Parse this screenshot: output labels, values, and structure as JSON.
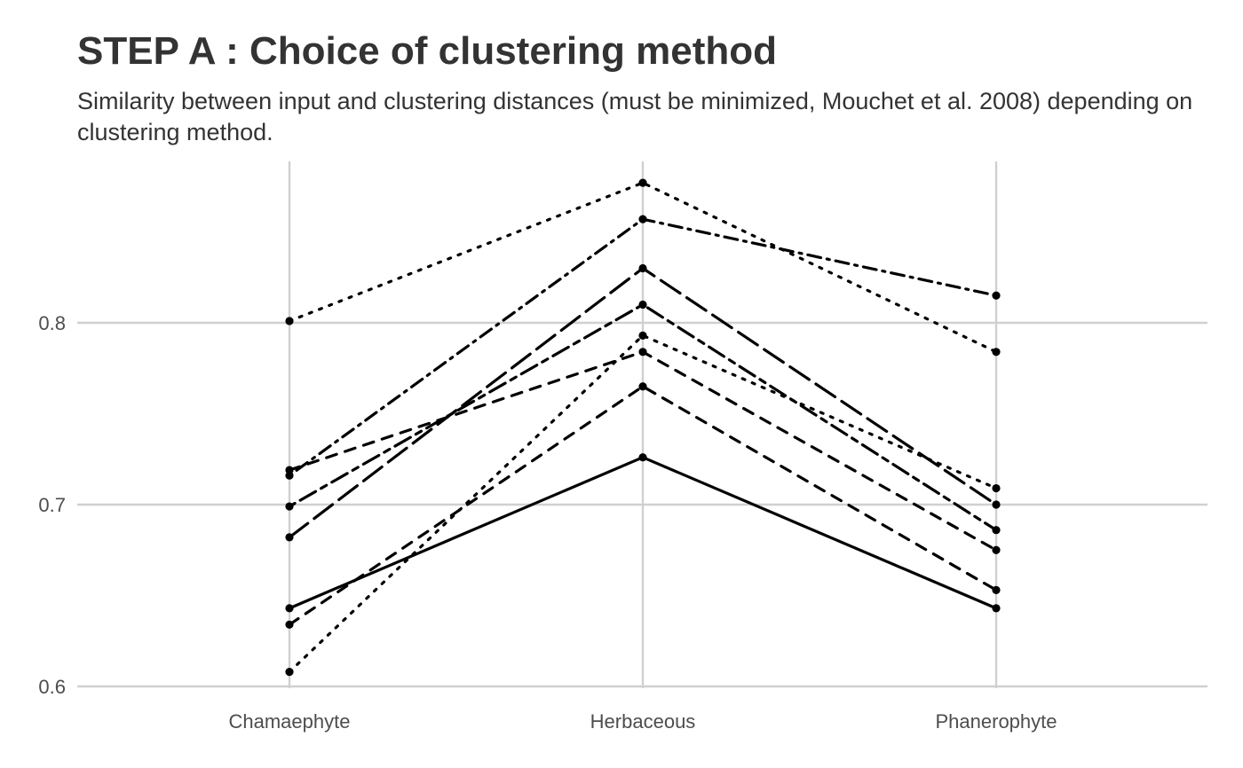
{
  "chart_data": {
    "type": "line",
    "title": "STEP A : Choice of clustering method",
    "subtitle": "Similarity between input and clustering distances (must be minimized, Mouchet et al. 2008) depending on clustering method.",
    "xlabel": "",
    "ylabel": "",
    "categories": [
      "Chamaephyte",
      "Herbaceous",
      "Phanerophyte"
    ],
    "yticks": [
      0.6,
      0.7,
      0.8
    ],
    "ylim": [
      0.6,
      0.89
    ],
    "grid": true,
    "legend": "none",
    "line_color": "#000000",
    "grid_color": "#d0d0d0",
    "series": [
      {
        "values": [
          0.643,
          0.726,
          0.643
        ],
        "dash": "solid"
      },
      {
        "values": [
          0.801,
          0.877,
          0.784
        ],
        "dash": "dotted"
      },
      {
        "values": [
          0.716,
          0.857,
          0.815
        ],
        "dash": "dashdot"
      },
      {
        "values": [
          0.682,
          0.83,
          0.7
        ],
        "dash": "longdash"
      },
      {
        "values": [
          0.699,
          0.81,
          0.686
        ],
        "dash": "twodash"
      },
      {
        "values": [
          0.719,
          0.784,
          0.675
        ],
        "dash": "dashed"
      },
      {
        "values": [
          0.608,
          0.793,
          0.709
        ],
        "dash": "dotted"
      },
      {
        "values": [
          0.634,
          0.765,
          0.653
        ],
        "dash": "dashed"
      }
    ]
  }
}
